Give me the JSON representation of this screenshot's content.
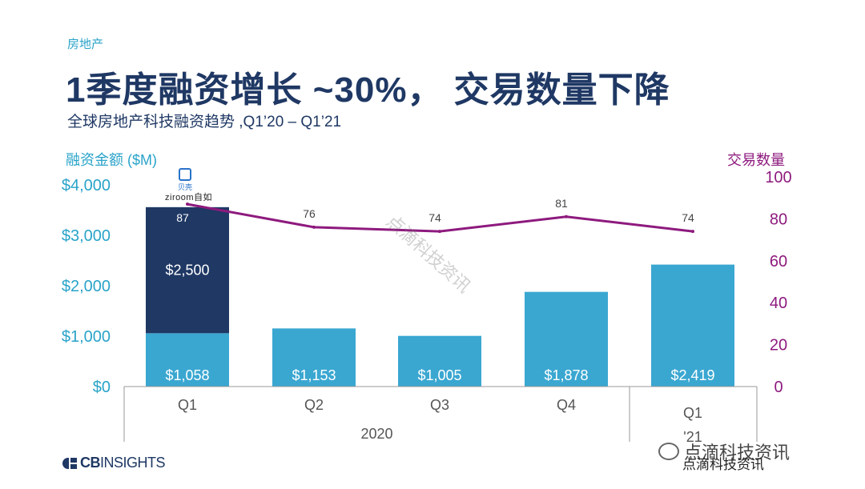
{
  "header": {
    "category": "房地产",
    "headline": "1季度融资增长 ~30%， 交易数量下降",
    "subtitle": "全球房地产科技融资趋势 ,Q1’20 – Q1’21"
  },
  "logos": {
    "beike": "贝壳",
    "ziroom": "ziroom自如",
    "cbinsights_bold": "CB",
    "cbinsights_rest": "INSIGHTS"
  },
  "footer": {
    "wechat_account": "点滴科技资讯",
    "source_text": "点滴科技资讯",
    "watermark": "点滴科技资讯"
  },
  "colors": {
    "bar_light": "#3aa7d1",
    "bar_dark": "#1f3864",
    "line": "#8e1a7e",
    "left_axis": "#29a3c9",
    "right_axis": "#8e1a7e"
  },
  "chart_data": {
    "type": "bar",
    "left_axis_title": "融资金额 ($M)",
    "right_axis_title": "交易数量",
    "left_ticks": [
      "$0",
      "$1,000",
      "$2,000",
      "$3,000",
      "$4,000"
    ],
    "right_ticks": [
      "0",
      "20",
      "40",
      "60",
      "80",
      "100"
    ],
    "ylim_left": [
      0,
      4000
    ],
    "ylim_right": [
      0,
      100
    ],
    "categories": [
      "Q1",
      "Q2",
      "Q3",
      "Q4",
      "Q1"
    ],
    "year_groups": [
      {
        "label": "2020",
        "from": 0,
        "to": 3
      },
      {
        "label": "'21",
        "from": 4,
        "to": 4
      }
    ],
    "series": [
      {
        "name": "",
        "kind": "bar",
        "color_key": "bar_light",
        "values": [
          1058,
          1153,
          1005,
          1878,
          2419
        ],
        "labels": [
          "$1,058",
          "$1,153",
          "$1,005",
          "$1,878",
          "$2,419"
        ]
      },
      {
        "name": "",
        "kind": "bar_stack",
        "color_key": "bar_dark",
        "values": [
          2500,
          0,
          0,
          0,
          0
        ],
        "labels": [
          "$2,500",
          "",
          "",
          "",
          ""
        ]
      },
      {
        "name": "",
        "kind": "line",
        "axis": "right",
        "color_key": "line",
        "values": [
          87,
          76,
          74,
          81,
          74
        ],
        "labels": [
          "87",
          "76",
          "74",
          "81",
          "74"
        ]
      }
    ]
  }
}
